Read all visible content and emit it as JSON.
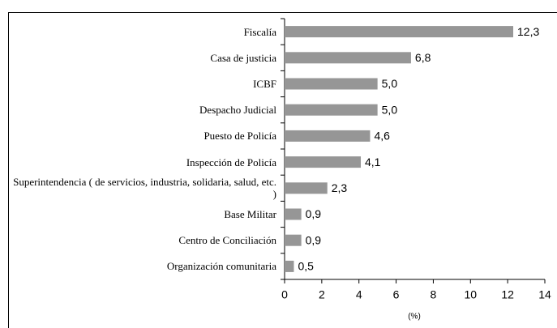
{
  "chart_data": {
    "type": "bar",
    "orientation": "horizontal",
    "categories": [
      "Fiscalía",
      "Casa de justicia",
      "ICBF",
      "Despacho Judicial",
      "Puesto de Policía",
      "Inspección de Policía",
      "Superintendencia ( de servicios, industria, solidaria, salud, etc. )",
      "Base Militar",
      "Centro de Conciliación",
      "Organización comunitaria"
    ],
    "values": [
      12.3,
      6.8,
      5.0,
      5.0,
      4.6,
      4.1,
      2.3,
      0.9,
      0.9,
      0.5
    ],
    "value_labels": [
      "12,3",
      "6,8",
      "5,0",
      "5,0",
      "4,6",
      "4,1",
      "2,3",
      "0,9",
      "0,9",
      "0,5"
    ],
    "color": "#969696",
    "xlabel": "(%)",
    "xlim": [
      0,
      14
    ],
    "xticks": [
      0,
      2,
      4,
      6,
      8,
      10,
      12,
      14
    ],
    "grid": false
  }
}
